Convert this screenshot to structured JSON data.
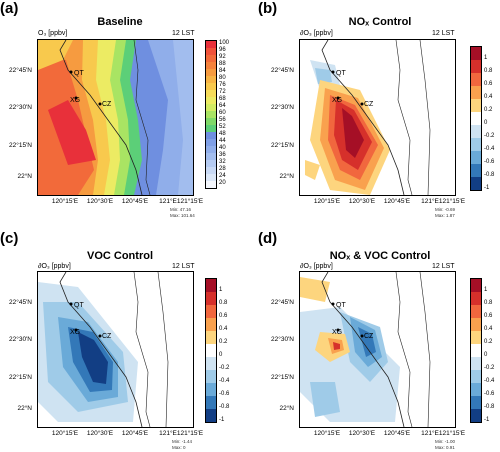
{
  "panels": [
    {
      "letter": "(a)",
      "title": "Baseline",
      "var_label": "O₃ [ppbv]",
      "time_label": "12 LST",
      "min_label": "Min: 47.16",
      "max_label": "Max: 101.64",
      "cbar_labels": [
        "100",
        "96",
        "92",
        "88",
        "84",
        "80",
        "76",
        "72",
        "68",
        "64",
        "60",
        "56",
        "52",
        "48",
        "44",
        "40",
        "36",
        "32",
        "28",
        "24",
        "20"
      ]
    },
    {
      "letter": "(b)",
      "title": "NOₓ Control",
      "var_label": "∂O₃ [ppbv]",
      "time_label": "12 LST",
      "min_label": "Min: -0.69",
      "max_label": "Max: 1.87",
      "cbar_labels": [
        "1",
        "0.8",
        "0.6",
        "0.4",
        "0.2",
        "0",
        "-0.2",
        "-0.4",
        "-0.6",
        "-0.8",
        "-1"
      ]
    },
    {
      "letter": "(c)",
      "title": "VOC Control",
      "var_label": "∂O₃ [ppbv]",
      "time_label": "12 LST",
      "min_label": "Min: -1.44",
      "max_label": "Max: 0",
      "cbar_labels": [
        "1",
        "0.8",
        "0.6",
        "0.4",
        "0.2",
        "0",
        "-0.2",
        "-0.4",
        "-0.6",
        "-0.8",
        "-1"
      ]
    },
    {
      "letter": "(d)",
      "title": "NOₓ & VOC Control",
      "var_label": "∂O₃ [ppbv]",
      "time_label": "12 LST",
      "min_label": "Min: -1.00",
      "max_label": "Max: 0.91",
      "cbar_labels": [
        "1",
        "0.8",
        "0.6",
        "0.4",
        "0.2",
        "0",
        "-0.2",
        "-0.4",
        "-0.6",
        "-0.8",
        "-1"
      ]
    }
  ],
  "lat_ticks": [
    "22°45'N",
    "22°30'N",
    "22°15'N",
    "22°N"
  ],
  "lon_ticks": [
    "120°15'E",
    "120°30'E",
    "120°45'E",
    "121°E",
    "121°15'E"
  ],
  "cities": [
    "QT",
    "XG",
    "CZ"
  ],
  "colors": {
    "baseline": [
      "#e8303a",
      "#f0523a",
      "#f26a3a",
      "#f5823c",
      "#f69b40",
      "#f7b445",
      "#f8c94d",
      "#f6dc5a",
      "#eceb63",
      "#d2ec63",
      "#a9e463",
      "#7fd968",
      "#5ccf78",
      "#6f8fe0",
      "#7f9fe6",
      "#90aeea",
      "#a2bdee",
      "#b5cbf2",
      "#c8d9f5",
      "#dbe7f8",
      "#f4f7fd"
    ],
    "diff": [
      "#a50f26",
      "#d6302b",
      "#f1673e",
      "#f9a14e",
      "#fdd57e",
      "#ffffff",
      "#cfe3f2",
      "#9fcbe8",
      "#6aaad8",
      "#3378b8",
      "#123e84"
    ]
  }
}
